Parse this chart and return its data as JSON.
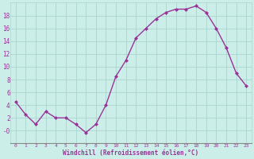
{
  "x": [
    0,
    1,
    2,
    3,
    4,
    5,
    6,
    7,
    8,
    9,
    10,
    11,
    12,
    13,
    14,
    15,
    16,
    17,
    18,
    19,
    20,
    21,
    22,
    23
  ],
  "y": [
    4.5,
    2.5,
    1.0,
    3.0,
    2.0,
    2.0,
    1.0,
    -0.3,
    1.0,
    4.0,
    8.5,
    11.0,
    14.5,
    16.0,
    17.5,
    18.5,
    19.0,
    19.0,
    19.5,
    18.5,
    16.0,
    13.0,
    9.0,
    7.0
  ],
  "line_color": "#993399",
  "marker": "D",
  "markersize": 2,
  "linewidth": 1.0,
  "bg_color": "#cceee8",
  "grid_color": "#aad4ce",
  "xlabel": "Windchill (Refroidissement éolien,°C)",
  "tick_color": "#993399",
  "xlim": [
    -0.5,
    23.5
  ],
  "ylim": [
    -2,
    20
  ],
  "yticks": [
    0,
    2,
    4,
    6,
    8,
    10,
    12,
    14,
    16,
    18
  ],
  "ytick_labels": [
    "-0",
    "2",
    "4",
    "6",
    "8",
    "10",
    "12",
    "14",
    "16",
    "18"
  ],
  "xticks": [
    0,
    1,
    2,
    3,
    4,
    5,
    6,
    7,
    8,
    9,
    10,
    11,
    12,
    13,
    14,
    15,
    16,
    17,
    18,
    19,
    20,
    21,
    22,
    23
  ]
}
